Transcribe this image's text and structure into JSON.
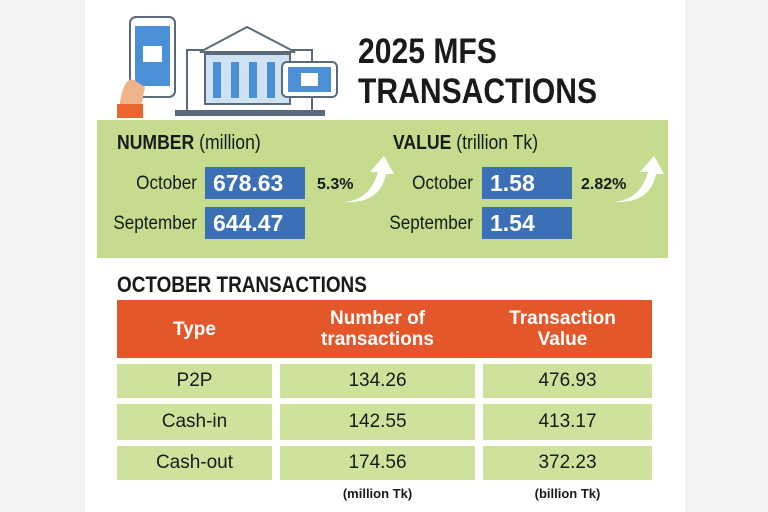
{
  "header": {
    "title_lines": [
      "2025 MFS",
      "TRANSACTIONS"
    ]
  },
  "summary": {
    "number": {
      "label": "NUMBER",
      "unit": "(million)",
      "change": "5.3%",
      "rows": [
        {
          "month": "October",
          "value": "678.63"
        },
        {
          "month": "September",
          "value": "644.47"
        }
      ]
    },
    "value": {
      "label": "VALUE",
      "unit": "(trillion Tk)",
      "change": "2.82%",
      "rows": [
        {
          "month": "October",
          "value": "1.58"
        },
        {
          "month": "September",
          "value": "1.54"
        }
      ]
    }
  },
  "table": {
    "title": "OCTOBER TRANSACTIONS",
    "header": [
      "Type",
      "Number of transactions",
      "Transaction Value"
    ],
    "rows": [
      [
        "P2P",
        "134.26",
        "476.93"
      ],
      [
        "Cash-in",
        "142.55",
        "413.17"
      ],
      [
        "Cash-out",
        "174.56",
        "372.23"
      ]
    ],
    "units": [
      "(million Tk)",
      "(billion Tk)"
    ]
  }
}
